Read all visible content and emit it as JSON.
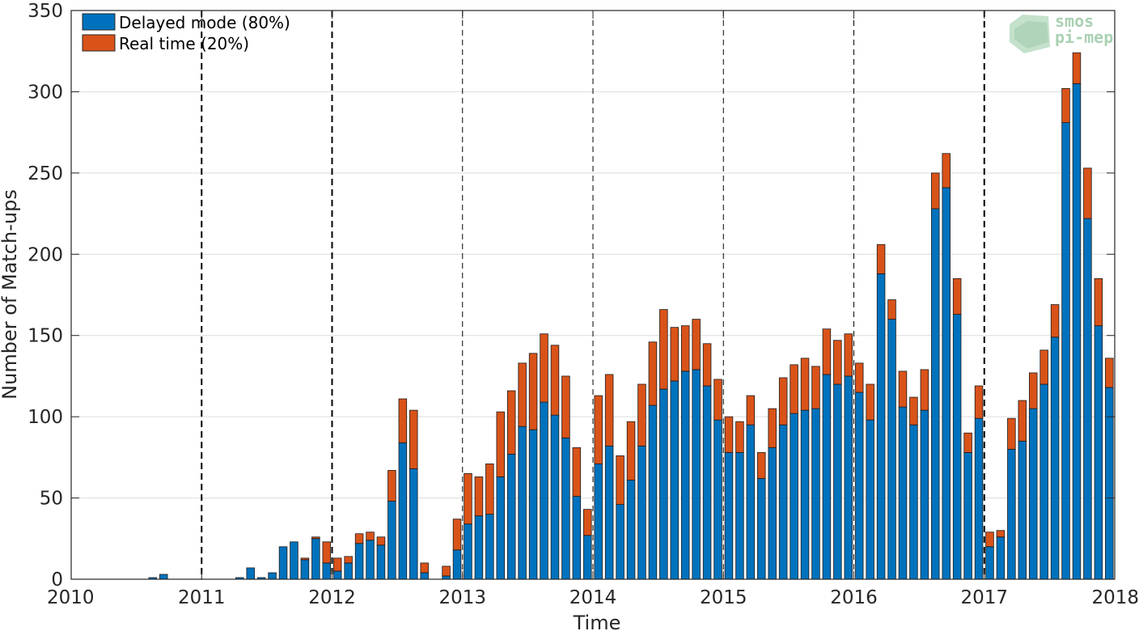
{
  "chart_data": {
    "type": "bar",
    "stacked": true,
    "xlabel": "Time",
    "ylabel": "Number of Match-ups",
    "xlim": [
      2010,
      2018
    ],
    "ylim": [
      0,
      350
    ],
    "x_ticks": [
      "2010",
      "2011",
      "2012",
      "2013",
      "2014",
      "2015",
      "2016",
      "2017",
      "2018"
    ],
    "y_ticks": [
      "0",
      "50",
      "100",
      "150",
      "200",
      "250",
      "300",
      "350"
    ],
    "grid": "horizontal",
    "legend_position": "top-left",
    "x": [
      "2010-01",
      "2010-02",
      "2010-03",
      "2010-04",
      "2010-05",
      "2010-06",
      "2010-07",
      "2010-08",
      "2010-09",
      "2010-10",
      "2010-11",
      "2010-12",
      "2011-01",
      "2011-02",
      "2011-03",
      "2011-04",
      "2011-05",
      "2011-06",
      "2011-07",
      "2011-08",
      "2011-09",
      "2011-10",
      "2011-11",
      "2011-12",
      "2012-01",
      "2012-02",
      "2012-03",
      "2012-04",
      "2012-05",
      "2012-06",
      "2012-07",
      "2012-08",
      "2012-09",
      "2012-10",
      "2012-11",
      "2012-12",
      "2013-01",
      "2013-02",
      "2013-03",
      "2013-04",
      "2013-05",
      "2013-06",
      "2013-07",
      "2013-08",
      "2013-09",
      "2013-10",
      "2013-11",
      "2013-12",
      "2014-01",
      "2014-02",
      "2014-03",
      "2014-04",
      "2014-05",
      "2014-06",
      "2014-07",
      "2014-08",
      "2014-09",
      "2014-10",
      "2014-11",
      "2014-12",
      "2015-01",
      "2015-02",
      "2015-03",
      "2015-04",
      "2015-05",
      "2015-06",
      "2015-07",
      "2015-08",
      "2015-09",
      "2015-10",
      "2015-11",
      "2015-12",
      "2016-01",
      "2016-02",
      "2016-03",
      "2016-04",
      "2016-05",
      "2016-06",
      "2016-07",
      "2016-08",
      "2016-09",
      "2016-10",
      "2016-11",
      "2016-12",
      "2017-01",
      "2017-02",
      "2017-03",
      "2017-04",
      "2017-05",
      "2017-06",
      "2017-07",
      "2017-08",
      "2017-09",
      "2017-10",
      "2017-11",
      "2017-12"
    ],
    "series": [
      {
        "name": "Delayed mode (80%)",
        "color": "#0072bd",
        "values": [
          0,
          0,
          0,
          0,
          0,
          0,
          0,
          1,
          3,
          0,
          0,
          0,
          0,
          0,
          0,
          1,
          7,
          1,
          4,
          20,
          23,
          12,
          25,
          10,
          5,
          10,
          22,
          24,
          21,
          48,
          84,
          68,
          4,
          0,
          2,
          18,
          34,
          39,
          40,
          63,
          77,
          94,
          92,
          109,
          101,
          87,
          51,
          27,
          71,
          82,
          46,
          61,
          82,
          107,
          117,
          122,
          128,
          129,
          119,
          98,
          78,
          78,
          95,
          62,
          81,
          95,
          102,
          104,
          105,
          126,
          120,
          125,
          115,
          98,
          188,
          160,
          106,
          95,
          104,
          228,
          241,
          163,
          78,
          99,
          20,
          26,
          80,
          85,
          105,
          120,
          149,
          281,
          305,
          222,
          156,
          118
        ]
      },
      {
        "name": "Real time (20%)",
        "color": "#d95319",
        "values": [
          0,
          0,
          0,
          0,
          0,
          0,
          0,
          0,
          0,
          0,
          0,
          0,
          0,
          0,
          0,
          0,
          0,
          0,
          0,
          0,
          0,
          1,
          1,
          13,
          8,
          4,
          6,
          5,
          5,
          19,
          27,
          36,
          6,
          0,
          6,
          19,
          31,
          24,
          31,
          40,
          39,
          39,
          47,
          42,
          43,
          38,
          30,
          16,
          42,
          44,
          30,
          36,
          38,
          39,
          49,
          33,
          28,
          31,
          26,
          25,
          22,
          19,
          18,
          16,
          24,
          29,
          30,
          32,
          26,
          28,
          27,
          26,
          18,
          22,
          18,
          12,
          22,
          17,
          25,
          22,
          21,
          22,
          12,
          20,
          9,
          4,
          19,
          25,
          22,
          21,
          20,
          21,
          19,
          31,
          29,
          18
        ]
      }
    ]
  },
  "colors": {
    "delayed": "#0072bd",
    "realtime": "#d95319",
    "axis": "#262626",
    "grid": "#dcdcdc"
  },
  "logo": {
    "line1": "smos",
    "line2": "pi-mep"
  }
}
